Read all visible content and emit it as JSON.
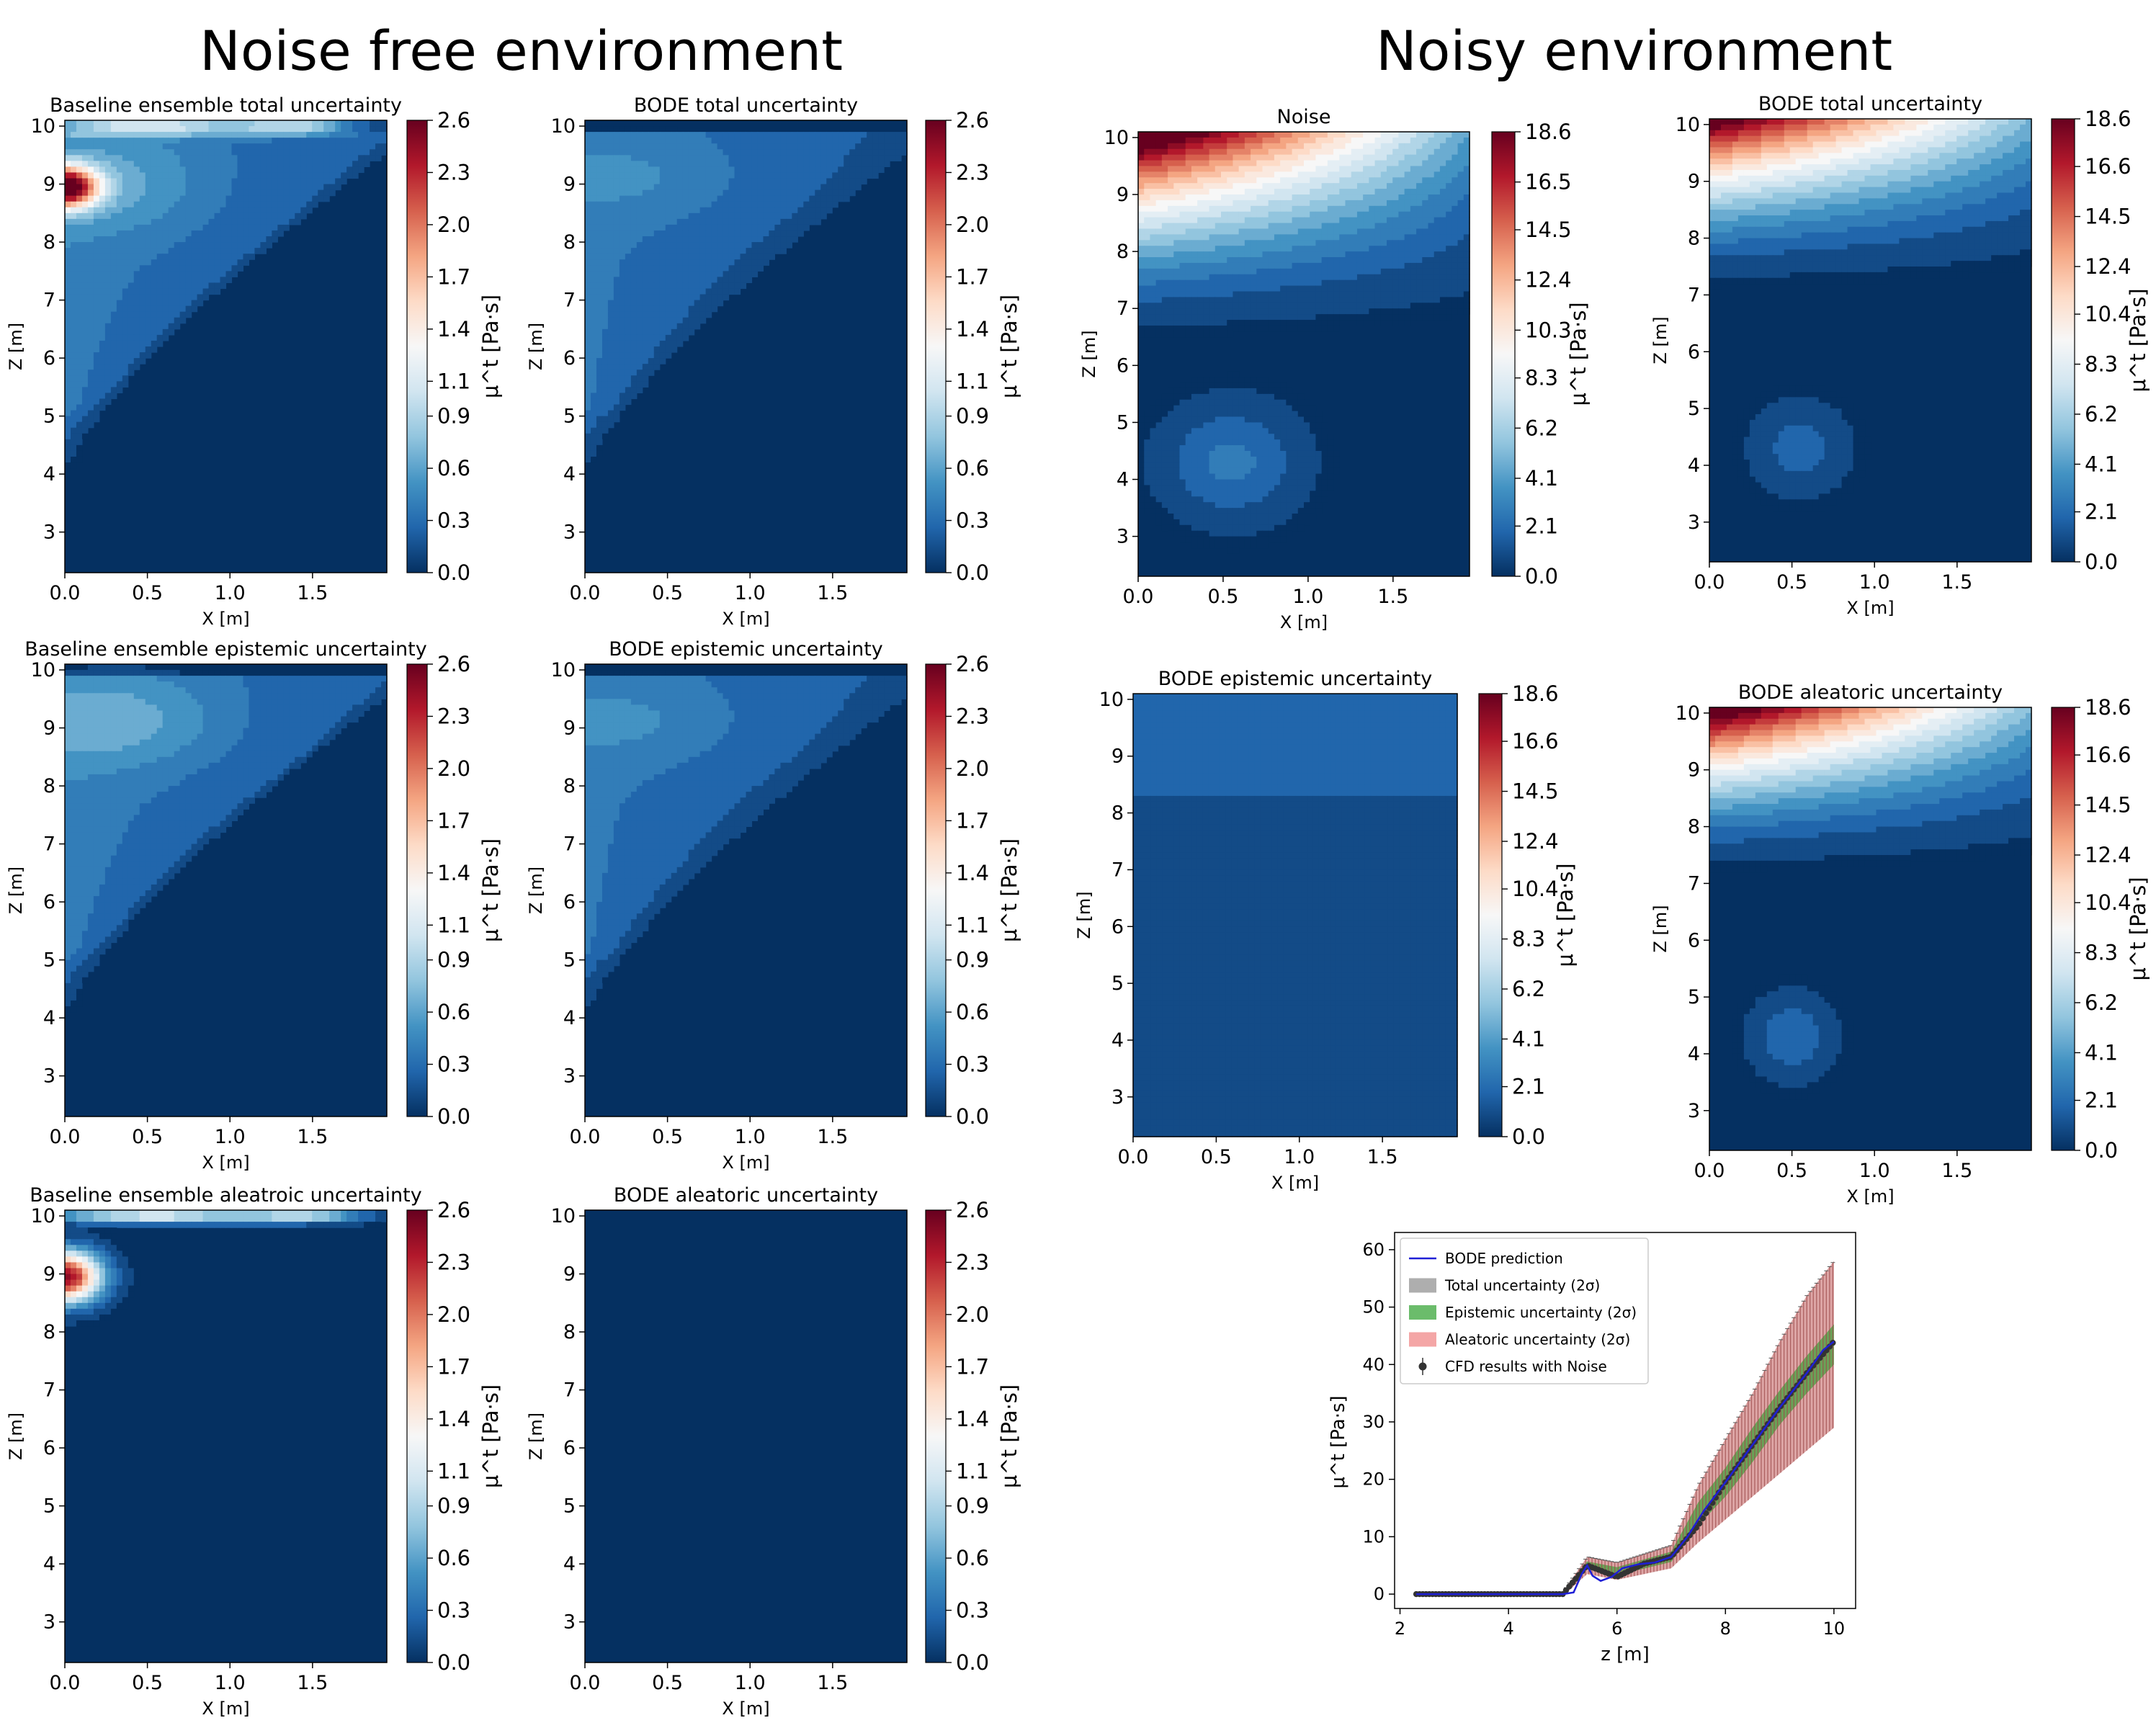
{
  "headings": {
    "left": "Noise free environment",
    "right": "Noisy environment"
  },
  "colors": {
    "colormap": "RdBu_r",
    "low": "#053061",
    "mid": "#f7f7f7",
    "high": "#67001f",
    "prediction_line": "#1f1fd6",
    "total_band": "#8c8c8c",
    "epistemic_band": "#2ca02c",
    "aleatoric_band": "#f08080",
    "cfd_points": "#333333"
  },
  "chart_data": [
    {
      "id": "nf-baseline-total",
      "type": "heatmap",
      "title": "Baseline ensemble total uncertainty",
      "xlabel": "X [m]",
      "ylabel": "Z [m]",
      "xticks": [
        "0.0",
        "0.5",
        "1.0",
        "1.5"
      ],
      "yticks": [
        "3",
        "4",
        "5",
        "6",
        "7",
        "8",
        "9",
        "10"
      ],
      "xlim": [
        0,
        1.95
      ],
      "ylim": [
        2.3,
        10.1
      ],
      "colorbar": {
        "label": "μ^t [Pa·s]",
        "ticks": [
          "0.0",
          "0.3",
          "0.6",
          "0.9",
          "1.1",
          "1.4",
          "1.7",
          "2.0",
          "2.3",
          "2.6"
        ],
        "range": [
          0,
          2.6
        ]
      },
      "pattern": "baseline_total"
    },
    {
      "id": "nf-bode-total",
      "type": "heatmap",
      "title": "BODE total uncertainty",
      "xlabel": "X [m]",
      "ylabel": "Z [m]",
      "xticks": [
        "0.0",
        "0.5",
        "1.0",
        "1.5"
      ],
      "yticks": [
        "3",
        "4",
        "5",
        "6",
        "7",
        "8",
        "9",
        "10"
      ],
      "xlim": [
        0,
        1.95
      ],
      "ylim": [
        2.3,
        10.1
      ],
      "colorbar": {
        "label": "μ^t [Pa·s]",
        "ticks": [
          "0.0",
          "0.3",
          "0.6",
          "0.9",
          "1.1",
          "1.4",
          "1.7",
          "2.0",
          "2.3",
          "2.6"
        ],
        "range": [
          0,
          2.6
        ]
      },
      "pattern": "bode_plume"
    },
    {
      "id": "nf-baseline-epistemic",
      "type": "heatmap",
      "title": "Baseline ensemble epistemic uncertainty",
      "xlabel": "X [m]",
      "ylabel": "Z [m]",
      "xticks": [
        "0.0",
        "0.5",
        "1.0",
        "1.5"
      ],
      "yticks": [
        "3",
        "4",
        "5",
        "6",
        "7",
        "8",
        "9",
        "10"
      ],
      "xlim": [
        0,
        1.95
      ],
      "ylim": [
        2.3,
        10.1
      ],
      "colorbar": {
        "label": "μ^t [Pa·s]",
        "ticks": [
          "0.0",
          "0.3",
          "0.6",
          "0.9",
          "1.1",
          "1.4",
          "1.7",
          "2.0",
          "2.3",
          "2.6"
        ],
        "range": [
          0,
          2.6
        ]
      },
      "pattern": "baseline_epistemic"
    },
    {
      "id": "nf-bode-epistemic",
      "type": "heatmap",
      "title": "BODE epistemic uncertainty",
      "xlabel": "X [m]",
      "ylabel": "Z [m]",
      "xticks": [
        "0.0",
        "0.5",
        "1.0",
        "1.5"
      ],
      "yticks": [
        "3",
        "4",
        "5",
        "6",
        "7",
        "8",
        "9",
        "10"
      ],
      "xlim": [
        0,
        1.95
      ],
      "ylim": [
        2.3,
        10.1
      ],
      "colorbar": {
        "label": "μ^t [Pa·s]",
        "ticks": [
          "0.0",
          "0.3",
          "0.6",
          "0.9",
          "1.1",
          "1.4",
          "1.7",
          "2.0",
          "2.3",
          "2.6"
        ],
        "range": [
          0,
          2.6
        ]
      },
      "pattern": "bode_plume"
    },
    {
      "id": "nf-baseline-aleatoric",
      "type": "heatmap",
      "title": "Baseline ensemble aleatroic uncertainty",
      "xlabel": "X [m]",
      "ylabel": "Z [m]",
      "xticks": [
        "0.0",
        "0.5",
        "1.0",
        "1.5"
      ],
      "yticks": [
        "3",
        "4",
        "5",
        "6",
        "7",
        "8",
        "9",
        "10"
      ],
      "xlim": [
        0,
        1.95
      ],
      "ylim": [
        2.3,
        10.1
      ],
      "colorbar": {
        "label": "μ^t [Pa·s]",
        "ticks": [
          "0.0",
          "0.3",
          "0.6",
          "0.9",
          "1.1",
          "1.4",
          "1.7",
          "2.0",
          "2.3",
          "2.6"
        ],
        "range": [
          0,
          2.6
        ]
      },
      "pattern": "baseline_aleatoric"
    },
    {
      "id": "nf-bode-aleatoric",
      "type": "heatmap",
      "title": "BODE aleatoric uncertainty",
      "xlabel": "X [m]",
      "ylabel": "Z [m]",
      "xticks": [
        "0.0",
        "0.5",
        "1.0",
        "1.5"
      ],
      "yticks": [
        "3",
        "4",
        "5",
        "6",
        "7",
        "8",
        "9",
        "10"
      ],
      "xlim": [
        0,
        1.95
      ],
      "ylim": [
        2.3,
        10.1
      ],
      "colorbar": {
        "label": "μ^t [Pa·s]",
        "ticks": [
          "0.0",
          "0.3",
          "0.6",
          "0.9",
          "1.1",
          "1.4",
          "1.7",
          "2.0",
          "2.3",
          "2.6"
        ],
        "range": [
          0,
          2.6
        ]
      },
      "pattern": "zero"
    },
    {
      "id": "noisy-noise",
      "type": "heatmap",
      "title": "Noise",
      "xlabel": "X [m]",
      "ylabel": "Z [m]",
      "xticks": [
        "0.0",
        "0.5",
        "1.0",
        "1.5"
      ],
      "yticks": [
        "3",
        "4",
        "5",
        "6",
        "7",
        "8",
        "9",
        "10"
      ],
      "xlim": [
        0,
        1.95
      ],
      "ylim": [
        2.3,
        10.1
      ],
      "colorbar": {
        "label": "μ^t [Pa·s]",
        "ticks": [
          "0.0",
          "2.1",
          "4.1",
          "6.2",
          "8.3",
          "10.3",
          "12.4",
          "14.5",
          "16.5",
          "18.6"
        ],
        "range": [
          0,
          18.6
        ]
      },
      "pattern": "noise"
    },
    {
      "id": "noisy-bode-total",
      "type": "heatmap",
      "title": "BODE total uncertainty",
      "xlabel": "X [m]",
      "ylabel": "Z [m]",
      "xticks": [
        "0.0",
        "0.5",
        "1.0",
        "1.5"
      ],
      "yticks": [
        "3",
        "4",
        "5",
        "6",
        "7",
        "8",
        "9",
        "10"
      ],
      "xlim": [
        0,
        1.95
      ],
      "ylim": [
        2.3,
        10.1
      ],
      "colorbar": {
        "label": "μ^t [Pa·s]",
        "ticks": [
          "0.0",
          "2.1",
          "4.1",
          "6.2",
          "8.3",
          "10.4",
          "12.4",
          "14.5",
          "16.6",
          "18.6"
        ],
        "range": [
          0,
          18.6
        ]
      },
      "pattern": "noisy_total"
    },
    {
      "id": "noisy-bode-epistemic",
      "type": "heatmap",
      "title": "BODE epistemic uncertainty",
      "xlabel": "X [m]",
      "ylabel": "Z [m]",
      "xticks": [
        "0.0",
        "0.5",
        "1.0",
        "1.5"
      ],
      "yticks": [
        "3",
        "4",
        "5",
        "6",
        "7",
        "8",
        "9",
        "10"
      ],
      "xlim": [
        0,
        1.95
      ],
      "ylim": [
        2.3,
        10.1
      ],
      "colorbar": {
        "label": "μ^t [Pa·s]",
        "ticks": [
          "0.0",
          "2.1",
          "4.1",
          "6.2",
          "8.3",
          "10.4",
          "12.4",
          "14.5",
          "16.6",
          "18.6"
        ],
        "range": [
          0,
          18.6
        ]
      },
      "pattern": "noisy_epistemic"
    },
    {
      "id": "noisy-bode-aleatoric",
      "type": "heatmap",
      "title": "BODE aleatoric uncertainty",
      "xlabel": "X [m]",
      "ylabel": "Z [m]",
      "xticks": [
        "0.0",
        "0.5",
        "1.0",
        "1.5"
      ],
      "yticks": [
        "3",
        "4",
        "5",
        "6",
        "7",
        "8",
        "9",
        "10"
      ],
      "xlim": [
        0,
        1.95
      ],
      "ylim": [
        2.3,
        10.1
      ],
      "colorbar": {
        "label": "μ^t [Pa·s]",
        "ticks": [
          "0.0",
          "2.1",
          "4.1",
          "6.2",
          "8.3",
          "10.4",
          "12.4",
          "14.5",
          "16.6",
          "18.6"
        ],
        "range": [
          0,
          18.6
        ]
      },
      "pattern": "noisy_aleatoric"
    },
    {
      "id": "noisy-line",
      "type": "line",
      "xlabel": "z [m]",
      "ylabel": "μ^t [Pa·s]",
      "xlim": [
        1.9,
        10.4
      ],
      "ylim": [
        -2.5,
        63
      ],
      "xticks": [
        2,
        4,
        6,
        8,
        10
      ],
      "yticks": [
        0,
        10,
        20,
        30,
        40,
        50,
        60
      ],
      "legend_position": "upper-left",
      "legend": [
        {
          "key": "prediction",
          "label": "BODE prediction",
          "kind": "line"
        },
        {
          "key": "total",
          "label": "Total uncertainty (2σ)",
          "kind": "band"
        },
        {
          "key": "epistemic",
          "label": "Epistemic uncertainty (2σ)",
          "kind": "band"
        },
        {
          "key": "aleatoric",
          "label": "Aleatoric uncertainty (2σ)",
          "kind": "band"
        },
        {
          "key": "cfd",
          "label": "CFD results with Noise",
          "kind": "points"
        }
      ],
      "series": [
        {
          "key": "prediction",
          "x": [
            2.3,
            3.0,
            4.0,
            5.0,
            5.2,
            5.35,
            5.45,
            5.55,
            5.7,
            5.9,
            6.1,
            6.4,
            6.7,
            7.0,
            7.3,
            7.6,
            8.0,
            8.5,
            9.0,
            9.5,
            9.8,
            10.0
          ],
          "y": [
            0,
            0,
            0,
            0,
            0.3,
            3.5,
            5.0,
            3.2,
            2.3,
            3.0,
            4.5,
            5.2,
            5.5,
            6.5,
            10.0,
            14.5,
            19.5,
            26.0,
            32.5,
            38.5,
            42.5,
            44.0
          ]
        },
        {
          "key": "total_band",
          "x": [
            2.3,
            5.0,
            5.45,
            6.0,
            7.0,
            7.5,
            8.0,
            8.5,
            9.0,
            9.5,
            10.0
          ],
          "lower": [
            -0.3,
            -0.3,
            3.5,
            2.5,
            4.5,
            9.0,
            13.0,
            17.0,
            21.0,
            25.0,
            29.0
          ],
          "upper": [
            0.3,
            0.3,
            6.5,
            5.5,
            8.5,
            19.0,
            27.0,
            35.0,
            44.0,
            52.0,
            58.0
          ]
        },
        {
          "key": "epistemic_band",
          "x": [
            2.3,
            5.0,
            5.45,
            6.0,
            7.0,
            7.5,
            8.0,
            8.5,
            9.0,
            9.5,
            10.0
          ],
          "lower": [
            -0.1,
            -0.1,
            4.3,
            3.3,
            5.6,
            12.0,
            17.0,
            23.0,
            29.5,
            35.0,
            40.0
          ],
          "upper": [
            0.1,
            0.1,
            5.7,
            4.7,
            7.4,
            16.0,
            22.0,
            29.0,
            35.5,
            41.5,
            47.0
          ]
        },
        {
          "key": "cfd_points",
          "x": [
            2.3,
            3.0,
            4.0,
            5.0,
            5.45,
            6.0,
            6.5,
            7.0,
            7.5,
            8.0,
            8.5,
            9.0,
            9.5,
            10.0
          ],
          "y": [
            0,
            0,
            0,
            0,
            5.0,
            3.0,
            5.3,
            6.5,
            12.0,
            19.5,
            26.0,
            32.5,
            38.5,
            44.0
          ]
        }
      ]
    }
  ]
}
